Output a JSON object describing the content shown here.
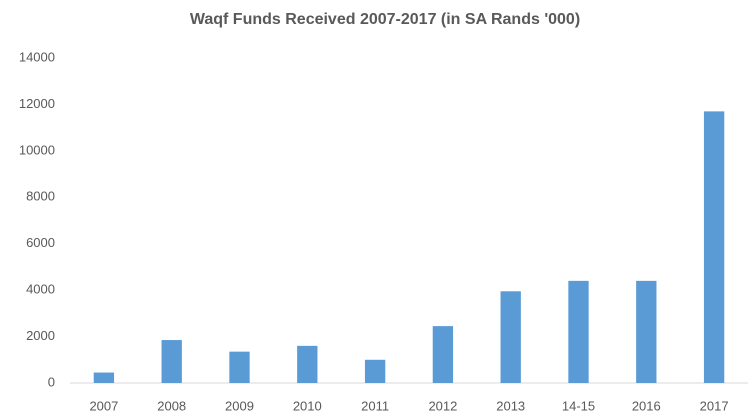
{
  "chart_data": {
    "type": "bar",
    "title": "Waqf Funds  Received 2007-2017 (in SA Rands '000)",
    "categories": [
      "2007",
      "2008",
      "2009",
      "2010",
      "2011",
      "2012",
      "2013",
      "14-15",
      "2016",
      "2017"
    ],
    "values": [
      450,
      1850,
      1350,
      1600,
      1000,
      2450,
      3950,
      4400,
      4400,
      11700
    ],
    "color": "#5b9bd5",
    "ylim": [
      0,
      14000
    ],
    "yticks": [
      0,
      2000,
      4000,
      6000,
      8000,
      10000,
      12000,
      14000
    ],
    "grid": false
  }
}
